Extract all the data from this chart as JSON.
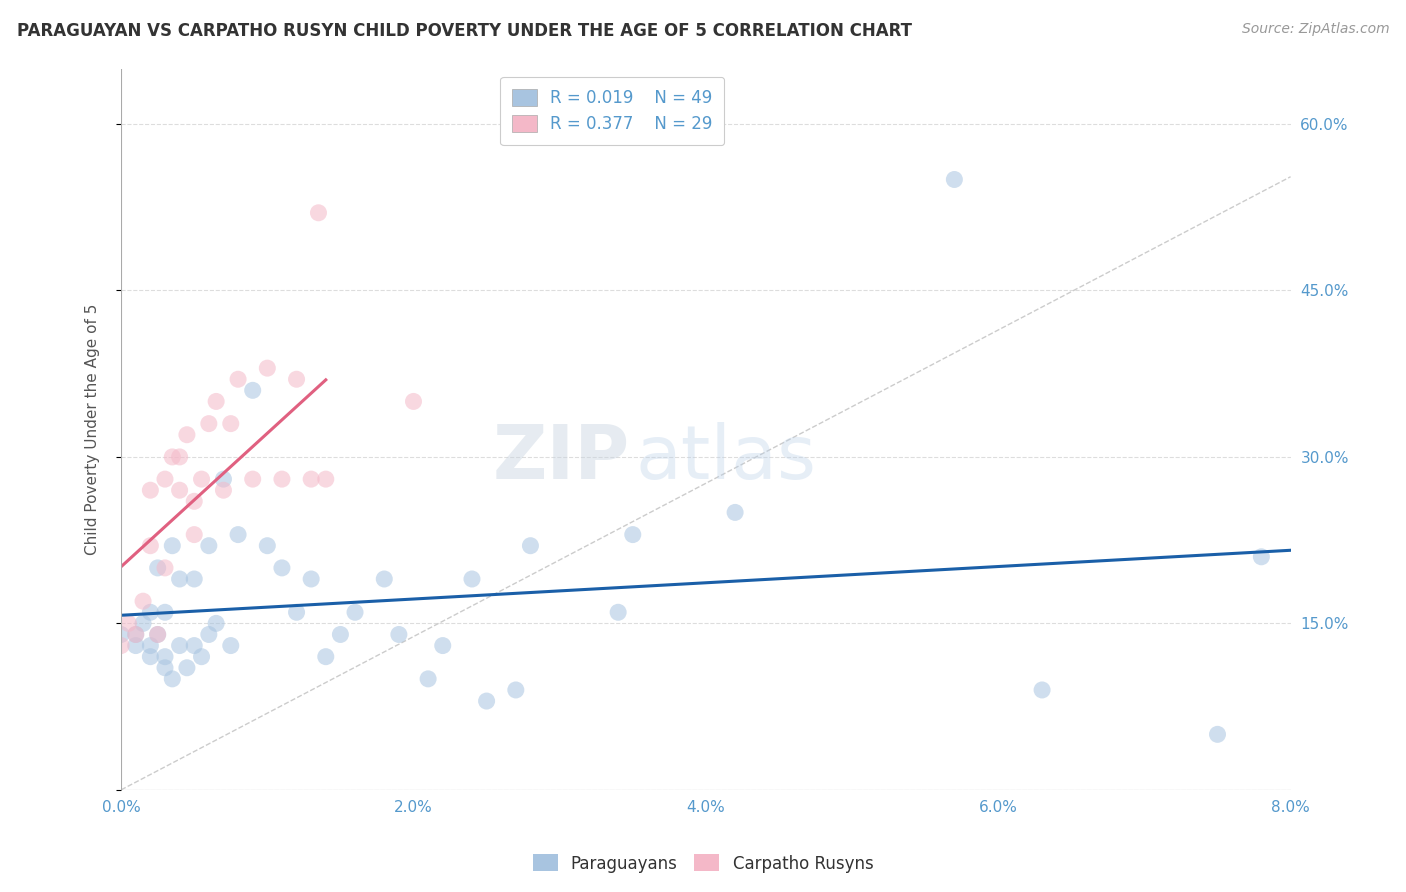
{
  "title": "PARAGUAYAN VS CARPATHO RUSYN CHILD POVERTY UNDER THE AGE OF 5 CORRELATION CHART",
  "source": "Source: ZipAtlas.com",
  "ylabel": "Child Poverty Under the Age of 5",
  "xlim": [
    0.0,
    8.0
  ],
  "ylim": [
    0.0,
    65.0
  ],
  "xticks": [
    0.0,
    1.0,
    2.0,
    3.0,
    4.0,
    5.0,
    6.0,
    7.0,
    8.0
  ],
  "xticklabels": [
    "0.0%",
    "",
    "2.0%",
    "",
    "4.0%",
    "",
    "6.0%",
    "",
    "8.0%"
  ],
  "yticks": [
    0.0,
    15.0,
    30.0,
    45.0,
    60.0
  ],
  "yticklabels": [
    "",
    "15.0%",
    "30.0%",
    "45.0%",
    "60.0%"
  ],
  "watermark_zip": "ZIP",
  "watermark_atlas": "atlas",
  "legend_label1": "R = 0.019    N = 49",
  "legend_label2": "R = 0.377    N = 29",
  "blue_color": "#a8c4e0",
  "pink_color": "#f4b8c8",
  "line_blue": "#1a5fa8",
  "line_pink": "#e06080",
  "diagonal_color": "#cccccc",
  "paraguayans_x": [
    0.0,
    0.1,
    0.1,
    0.15,
    0.2,
    0.2,
    0.2,
    0.25,
    0.25,
    0.3,
    0.3,
    0.3,
    0.35,
    0.35,
    0.4,
    0.4,
    0.45,
    0.5,
    0.5,
    0.55,
    0.6,
    0.6,
    0.65,
    0.7,
    0.75,
    0.8,
    0.9,
    1.0,
    1.1,
    1.2,
    1.3,
    1.4,
    1.5,
    1.6,
    1.8,
    1.9,
    2.1,
    2.2,
    2.4,
    2.5,
    2.7,
    2.8,
    3.4,
    3.5,
    4.2,
    5.7,
    6.3,
    7.5,
    7.8
  ],
  "paraguayans_y": [
    14.0,
    13.0,
    14.0,
    15.0,
    16.0,
    12.0,
    13.0,
    14.0,
    20.0,
    11.0,
    12.0,
    16.0,
    22.0,
    10.0,
    13.0,
    19.0,
    11.0,
    13.0,
    19.0,
    12.0,
    14.0,
    22.0,
    15.0,
    28.0,
    13.0,
    23.0,
    36.0,
    22.0,
    20.0,
    16.0,
    19.0,
    12.0,
    14.0,
    16.0,
    19.0,
    14.0,
    10.0,
    13.0,
    19.0,
    8.0,
    9.0,
    22.0,
    16.0,
    23.0,
    25.0,
    55.0,
    9.0,
    5.0,
    21.0
  ],
  "carpatho_x": [
    0.0,
    0.05,
    0.1,
    0.15,
    0.2,
    0.2,
    0.25,
    0.3,
    0.3,
    0.35,
    0.4,
    0.4,
    0.45,
    0.5,
    0.5,
    0.55,
    0.6,
    0.65,
    0.7,
    0.75,
    0.8,
    0.9,
    1.0,
    1.1,
    1.2,
    1.3,
    1.35,
    1.4,
    2.0
  ],
  "carpatho_y": [
    13.0,
    15.0,
    14.0,
    17.0,
    22.0,
    27.0,
    14.0,
    20.0,
    28.0,
    30.0,
    27.0,
    30.0,
    32.0,
    23.0,
    26.0,
    28.0,
    33.0,
    35.0,
    27.0,
    33.0,
    37.0,
    28.0,
    38.0,
    28.0,
    37.0,
    28.0,
    52.0,
    28.0,
    35.0
  ],
  "marker_size": 150,
  "alpha": 0.55
}
